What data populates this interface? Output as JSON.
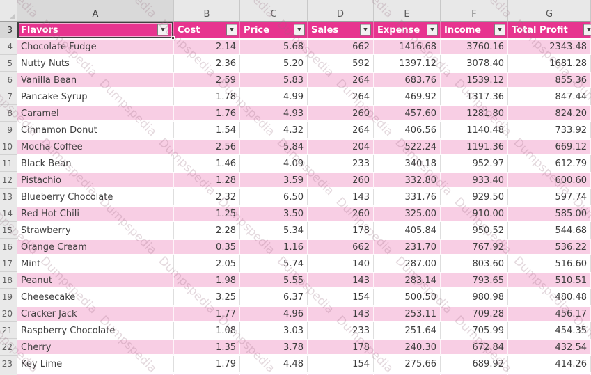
{
  "app": {
    "type": "spreadsheet-worksheet"
  },
  "icons": {
    "filter_arrow": "▼"
  },
  "watermark": {
    "text": "Dumpspedia"
  },
  "colors": {
    "header_bg": "#E7348F",
    "band_pink": "#F8CEE4",
    "selection_border": "#3F3F3F",
    "chrome_bg": "#E8E8E8",
    "header_text": "#FFFFFF"
  },
  "sheet": {
    "column_letters": [
      "A",
      "B",
      "C",
      "D",
      "E",
      "F",
      "G"
    ],
    "header_row_number": "3",
    "selected_cell": "A3"
  },
  "table": {
    "headers": [
      "Flavors",
      "Cost",
      "Price",
      "Sales",
      "Expense",
      "Income",
      "Total Profit"
    ],
    "rows": [
      {
        "num": "4",
        "flavor": "Chocolate Fudge",
        "cost": "2.14",
        "price": "5.68",
        "sales": "662",
        "expense": "1416.68",
        "income": "3760.16",
        "profit": "2343.48"
      },
      {
        "num": "5",
        "flavor": "Nutty Nuts",
        "cost": "2.36",
        "price": "5.20",
        "sales": "592",
        "expense": "1397.12",
        "income": "3078.40",
        "profit": "1681.28"
      },
      {
        "num": "6",
        "flavor": "Vanilla Bean",
        "cost": "2.59",
        "price": "5.83",
        "sales": "264",
        "expense": "683.76",
        "income": "1539.12",
        "profit": "855.36"
      },
      {
        "num": "7",
        "flavor": "Pancake Syrup",
        "cost": "1.78",
        "price": "4.99",
        "sales": "264",
        "expense": "469.92",
        "income": "1317.36",
        "profit": "847.44"
      },
      {
        "num": "8",
        "flavor": "Caramel",
        "cost": "1.76",
        "price": "4.93",
        "sales": "260",
        "expense": "457.60",
        "income": "1281.80",
        "profit": "824.20"
      },
      {
        "num": "9",
        "flavor": "Cinnamon Donut",
        "cost": "1.54",
        "price": "4.32",
        "sales": "264",
        "expense": "406.56",
        "income": "1140.48",
        "profit": "733.92"
      },
      {
        "num": "10",
        "flavor": "Mocha Coffee",
        "cost": "2.56",
        "price": "5.84",
        "sales": "204",
        "expense": "522.24",
        "income": "1191.36",
        "profit": "669.12"
      },
      {
        "num": "11",
        "flavor": "Black Bean",
        "cost": "1.46",
        "price": "4.09",
        "sales": "233",
        "expense": "340.18",
        "income": "952.97",
        "profit": "612.79"
      },
      {
        "num": "12",
        "flavor": "Pistachio",
        "cost": "1.28",
        "price": "3.59",
        "sales": "260",
        "expense": "332.80",
        "income": "933.40",
        "profit": "600.60"
      },
      {
        "num": "13",
        "flavor": "Blueberry Chocolate",
        "cost": "2.32",
        "price": "6.50",
        "sales": "143",
        "expense": "331.76",
        "income": "929.50",
        "profit": "597.74"
      },
      {
        "num": "14",
        "flavor": "Red Hot Chili",
        "cost": "1.25",
        "price": "3.50",
        "sales": "260",
        "expense": "325.00",
        "income": "910.00",
        "profit": "585.00"
      },
      {
        "num": "15",
        "flavor": "Strawberry",
        "cost": "2.28",
        "price": "5.34",
        "sales": "178",
        "expense": "405.84",
        "income": "950.52",
        "profit": "544.68"
      },
      {
        "num": "16",
        "flavor": "Orange Cream",
        "cost": "0.35",
        "price": "1.16",
        "sales": "662",
        "expense": "231.70",
        "income": "767.92",
        "profit": "536.22"
      },
      {
        "num": "17",
        "flavor": "Mint",
        "cost": "2.05",
        "price": "5.74",
        "sales": "140",
        "expense": "287.00",
        "income": "803.60",
        "profit": "516.60"
      },
      {
        "num": "18",
        "flavor": "Peanut",
        "cost": "1.98",
        "price": "5.55",
        "sales": "143",
        "expense": "283.14",
        "income": "793.65",
        "profit": "510.51"
      },
      {
        "num": "19",
        "flavor": "Cheesecake",
        "cost": "3.25",
        "price": "6.37",
        "sales": "154",
        "expense": "500.50",
        "income": "980.98",
        "profit": "480.48"
      },
      {
        "num": "20",
        "flavor": "Cracker Jack",
        "cost": "1.77",
        "price": "4.96",
        "sales": "143",
        "expense": "253.11",
        "income": "709.28",
        "profit": "456.17"
      },
      {
        "num": "21",
        "flavor": "Raspberry Chocolate",
        "cost": "1.08",
        "price": "3.03",
        "sales": "233",
        "expense": "251.64",
        "income": "705.99",
        "profit": "454.35"
      },
      {
        "num": "22",
        "flavor": "Cherry",
        "cost": "1.35",
        "price": "3.78",
        "sales": "178",
        "expense": "240.30",
        "income": "672.84",
        "profit": "432.54"
      },
      {
        "num": "23",
        "flavor": "Key Lime",
        "cost": "1.79",
        "price": "4.48",
        "sales": "154",
        "expense": "275.66",
        "income": "689.92",
        "profit": "414.26"
      }
    ]
  }
}
